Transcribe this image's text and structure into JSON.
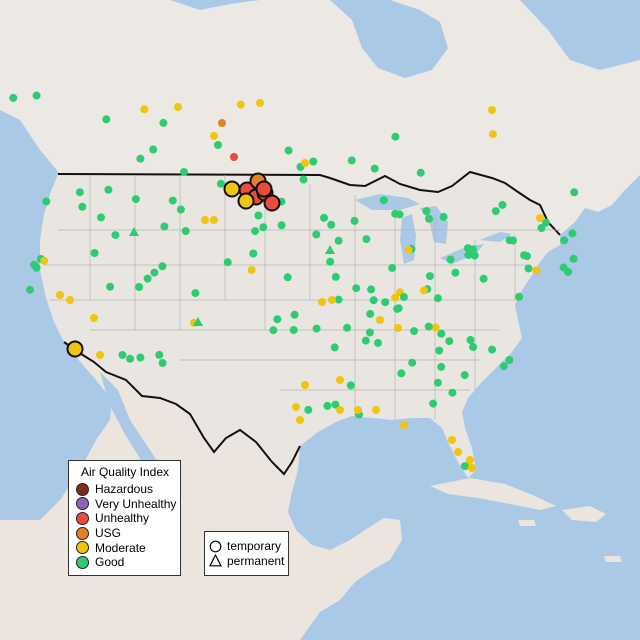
{
  "colors": {
    "ocean": "#a9c9e7",
    "land": "#e9e6e2",
    "canada": "#ece8e3",
    "mexico": "#ebe5de",
    "lakes": "#a9c9e7",
    "border": "#111111",
    "state_lines": "#b5b5b5"
  },
  "legend": {
    "title": "Air Quality Index",
    "items": [
      {
        "label": "Hazardous",
        "color": "#7e2a1f"
      },
      {
        "label": "Very Unhealthy",
        "color": "#9064b4"
      },
      {
        "label": "Unhealthy",
        "color": "#e74c3c"
      },
      {
        "label": "USG",
        "color": "#e67e22"
      },
      {
        "label": "Moderate",
        "color": "#f1c40f"
      },
      {
        "label": "Good",
        "color": "#2ecc71"
      }
    ]
  },
  "type_legend": {
    "items": [
      {
        "label": "temporary",
        "shape": "circle-icon"
      },
      {
        "label": "permanent",
        "shape": "triangle-icon"
      }
    ]
  }
}
